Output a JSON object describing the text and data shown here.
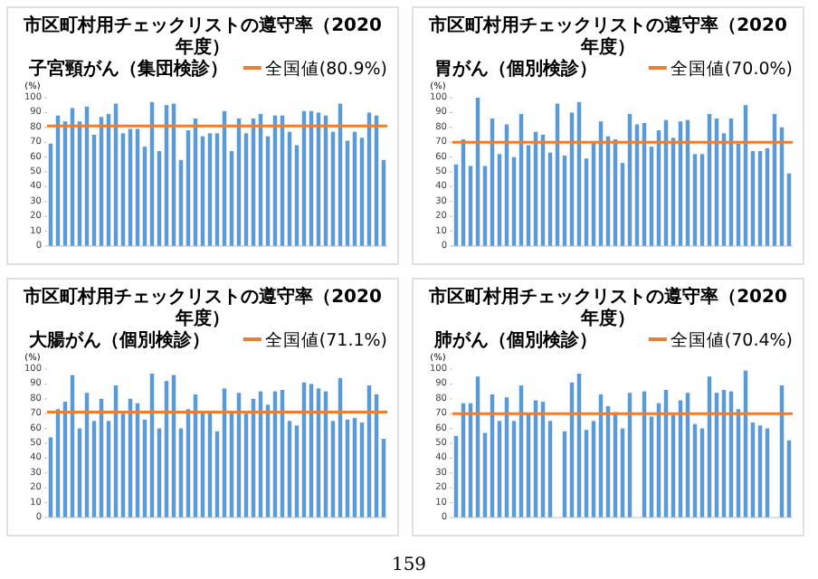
{
  "chart_data": [
    {
      "type": "bar",
      "title": "市区町村用チェックリストの遵守率（2020年度）",
      "subtitle": "子宮頸がん（集団検診）",
      "ylabel": "(%)",
      "categories": [
        null,
        null,
        null,
        null,
        null,
        null,
        null,
        null,
        null,
        null,
        null,
        null,
        null,
        null,
        null,
        null,
        null,
        null,
        null,
        null,
        null,
        null,
        null,
        null,
        null,
        null,
        null,
        null,
        null,
        null,
        null,
        null,
        null,
        null,
        null,
        null,
        null,
        null,
        null,
        null,
        null,
        null,
        null,
        null,
        null,
        null,
        null
      ],
      "color": "#5b9bd5",
      "values": [
        69,
        88,
        84,
        93,
        84,
        94,
        75,
        87,
        89,
        96,
        76,
        79,
        79,
        67,
        97,
        64,
        95,
        96,
        58,
        78,
        86,
        74,
        76,
        76,
        91,
        64,
        86,
        76,
        86,
        89,
        74,
        88,
        88,
        77,
        68,
        91,
        91,
        90,
        88,
        77,
        96,
        71,
        77,
        73,
        90,
        88,
        58
      ],
      "ylim": [
        0,
        100
      ],
      "yticks": [
        0,
        10,
        20,
        30,
        40,
        50,
        60,
        70,
        80,
        90,
        100
      ],
      "grid": false,
      "legend": "top right",
      "ref_lines": [
        {
          "axis": "y",
          "value": 81,
          "label": "全国値(80.9%)",
          "color": "#ed7d31"
        }
      ]
    },
    {
      "type": "bar",
      "title": "市区町村用チェックリストの遵守率（2020年度）",
      "subtitle": "胃がん（個別検診）",
      "ylabel": "(%)",
      "categories": [
        null,
        null,
        null,
        null,
        null,
        null,
        null,
        null,
        null,
        null,
        null,
        null,
        null,
        null,
        null,
        null,
        null,
        null,
        null,
        null,
        null,
        null,
        null,
        null,
        null,
        null,
        null,
        null,
        null,
        null,
        null,
        null,
        null,
        null,
        null,
        null,
        null,
        null,
        null,
        null,
        null,
        null,
        null,
        null,
        null,
        null,
        null
      ],
      "color": "#5b9bd5",
      "values": [
        55,
        72,
        54,
        100,
        54,
        86,
        62,
        82,
        60,
        89,
        68,
        77,
        75,
        63,
        96,
        61,
        90,
        97,
        59,
        70,
        84,
        74,
        72,
        56,
        89,
        82,
        83,
        67,
        78,
        85,
        73,
        84,
        85,
        62,
        62,
        89,
        86,
        76,
        86,
        69,
        95,
        64,
        64,
        66,
        89,
        80,
        49
      ],
      "ylim": [
        0,
        100
      ],
      "yticks": [
        0,
        10,
        20,
        30,
        40,
        50,
        60,
        70,
        80,
        90,
        100
      ],
      "grid": false,
      "legend": "top right",
      "ref_lines": [
        {
          "axis": "y",
          "value": 70,
          "label": "全国値(70.0%)",
          "color": "#ed7d31"
        }
      ]
    },
    {
      "type": "bar",
      "title": "市区町村用チェックリストの遵守率（2020年度）",
      "subtitle": "大腸がん（個別検診）",
      "ylabel": "(%)",
      "categories": [
        null,
        null,
        null,
        null,
        null,
        null,
        null,
        null,
        null,
        null,
        null,
        null,
        null,
        null,
        null,
        null,
        null,
        null,
        null,
        null,
        null,
        null,
        null,
        null,
        null,
        null,
        null,
        null,
        null,
        null,
        null,
        null,
        null,
        null,
        null,
        null,
        null,
        null,
        null,
        null,
        null,
        null,
        null,
        null,
        null,
        null,
        null
      ],
      "color": "#5b9bd5",
      "values": [
        54,
        73,
        78,
        96,
        60,
        84,
        65,
        80,
        65,
        89,
        70,
        80,
        77,
        66,
        97,
        60,
        92,
        96,
        60,
        73,
        83,
        71,
        71,
        58,
        87,
        71,
        84,
        70,
        80,
        85,
        76,
        85,
        86,
        65,
        62,
        91,
        90,
        87,
        85,
        65,
        94,
        66,
        67,
        64,
        89,
        83,
        53
      ],
      "ylim": [
        0,
        100
      ],
      "yticks": [
        0,
        10,
        20,
        30,
        40,
        50,
        60,
        70,
        80,
        90,
        100
      ],
      "grid": false,
      "legend": "top right",
      "ref_lines": [
        {
          "axis": "y",
          "value": 71,
          "label": "全国値(71.1%)",
          "color": "#ed7d31"
        }
      ]
    },
    {
      "type": "bar",
      "title": "市区町村用チェックリストの遵守率（2020年度）",
      "subtitle": "肺がん（個別検診）",
      "ylabel": "(%)",
      "categories": [
        null,
        null,
        null,
        null,
        null,
        null,
        null,
        null,
        null,
        null,
        null,
        null,
        null,
        null,
        null,
        null,
        null,
        null,
        null,
        null,
        null,
        null,
        null,
        null,
        null,
        null,
        null,
        null,
        null,
        null,
        null,
        null,
        null,
        null,
        null,
        null,
        null,
        null,
        null,
        null,
        null,
        null,
        null,
        null,
        null,
        null,
        null
      ],
      "color": "#5b9bd5",
      "values": [
        55,
        77,
        77,
        95,
        57,
        83,
        65,
        81,
        65,
        89,
        70,
        79,
        78,
        65,
        null,
        58,
        91,
        97,
        59,
        65,
        83,
        75,
        71,
        60,
        84,
        null,
        85,
        68,
        77,
        86,
        69,
        79,
        84,
        63,
        60,
        95,
        84,
        86,
        85,
        73,
        99,
        64,
        62,
        60,
        null,
        89,
        52
      ],
      "ylim": [
        0,
        100
      ],
      "yticks": [
        0,
        10,
        20,
        30,
        40,
        50,
        60,
        70,
        80,
        90,
        100
      ],
      "grid": false,
      "legend": "top right",
      "ref_lines": [
        {
          "axis": "y",
          "value": 70,
          "label": "全国値(70.4%)",
          "color": "#ed7d31"
        }
      ],
      "annotations": [
        "159"
      ]
    }
  ]
}
